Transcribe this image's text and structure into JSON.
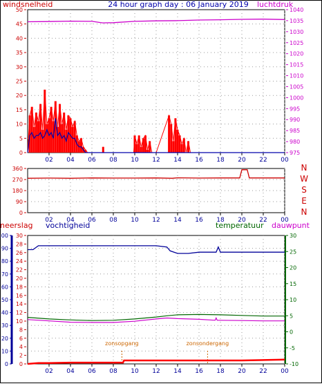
{
  "title": "24 hour graph day : 06 January 2019",
  "colors": {
    "wind": "#ff0000",
    "gust": "#0000aa",
    "pressure": "#cc00cc",
    "direction": "#cc0000",
    "humidity": "#000099",
    "temperature": "#006600",
    "dewpoint": "#cc00cc",
    "rain": "#ff0000",
    "sun_marker": "#cc6600",
    "axis": "#000000",
    "grid": "#999999"
  },
  "x_ticks": [
    "02",
    "04",
    "06",
    "08",
    "10",
    "12",
    "14",
    "16",
    "18",
    "20",
    "22",
    "00"
  ],
  "chart_data": [
    {
      "type": "line",
      "name": "wind-pressure",
      "labels": {
        "left": "windsnelheid",
        "right": "luchtdruk"
      },
      "x_range": [
        0,
        24
      ],
      "left_axis": {
        "ticks": [
          0,
          5,
          10,
          15,
          20,
          25,
          30,
          35,
          40,
          45,
          50
        ],
        "range": [
          0,
          50
        ]
      },
      "right_axis": {
        "ticks": [
          975,
          980,
          985,
          990,
          995,
          1000,
          1005,
          1010,
          1015,
          1020,
          1025,
          1030,
          1035,
          1040
        ],
        "range": [
          975,
          1040
        ]
      },
      "series": [
        {
          "role": "wind_gust",
          "x": [
            0,
            0.2,
            0.4,
            0.6,
            0.8,
            1.0,
            1.2,
            1.4,
            1.6,
            1.8,
            2.0,
            2.2,
            2.4,
            2.6,
            2.8,
            3.0,
            3.2,
            3.4,
            3.6,
            3.8,
            4.0,
            4.2,
            4.4,
            4.6,
            4.8,
            5.0,
            5.2,
            5.4,
            5.6,
            7.0,
            7.05,
            7.1,
            9.9,
            10.0,
            10.2,
            10.4,
            10.6,
            10.8,
            11.0,
            11.2,
            11.4,
            11.6,
            12.0,
            13.2,
            13.4,
            13.6,
            13.8,
            14.0,
            14.2,
            14.4,
            14.6,
            14.8,
            15.0,
            15.2,
            24
          ],
          "y": [
            0,
            13,
            16,
            9,
            14,
            11,
            17,
            8,
            22,
            10,
            12,
            16,
            11,
            18,
            9,
            17,
            10,
            14,
            8,
            13,
            12,
            9,
            11,
            6,
            4,
            5,
            2,
            1,
            0,
            0,
            2,
            0,
            0,
            6,
            3,
            6,
            2,
            5,
            6,
            1,
            4,
            0,
            0,
            13,
            10,
            4,
            12,
            8,
            6,
            3,
            5,
            0,
            4,
            0,
            0
          ]
        },
        {
          "role": "wind_speed",
          "x": [
            0,
            0.2,
            0.4,
            0.6,
            0.8,
            1.0,
            1.2,
            1.4,
            1.6,
            1.8,
            2.0,
            2.2,
            2.4,
            2.6,
            2.8,
            3.0,
            3.2,
            3.4,
            3.6,
            3.8,
            4.0,
            4.2,
            4.4,
            4.6,
            4.8,
            5.0,
            5.2,
            5.4,
            24
          ],
          "y": [
            0,
            6,
            7,
            5,
            6,
            6,
            7,
            5,
            6,
            8,
            6,
            7,
            5,
            12,
            6,
            7,
            5,
            6,
            4,
            7,
            6,
            5,
            5,
            3,
            2,
            2,
            1,
            0,
            0
          ]
        },
        {
          "role": "pressure",
          "x": [
            0,
            2,
            4,
            6,
            7,
            8,
            10,
            12,
            14,
            16,
            18,
            20,
            22,
            24
          ],
          "y": [
            1034.5,
            1034.6,
            1034.8,
            1034.7,
            1034.0,
            1034.1,
            1034.7,
            1034.9,
            1035.0,
            1035.3,
            1035.4,
            1035.6,
            1035.7,
            1035.5
          ]
        }
      ]
    },
    {
      "type": "line",
      "name": "wind-direction",
      "x_range": [
        0,
        24
      ],
      "left_axis": {
        "ticks": [
          0,
          90,
          180,
          270,
          360
        ],
        "range": [
          0,
          360
        ]
      },
      "right_labels": [
        "N",
        "W",
        "S",
        "E",
        "N"
      ],
      "series": [
        {
          "role": "direction",
          "x": [
            0,
            2,
            4,
            6,
            8,
            10,
            12,
            13.5,
            14,
            16,
            18,
            19.8,
            20.0,
            20.5,
            20.7,
            24
          ],
          "y": [
            280,
            282,
            280,
            283,
            282,
            282,
            283,
            280,
            284,
            282,
            283,
            283,
            350,
            350,
            283,
            283
          ]
        }
      ]
    },
    {
      "type": "line",
      "name": "rain-humidity-temperature",
      "labels": {
        "rain": "neerslag",
        "humidity": "vochtigheid",
        "temperature": "temperatuur",
        "dewpoint": "dauwpunt"
      },
      "x_range": [
        0,
        24
      ],
      "left_axis": {
        "ticks": [
          0,
          10,
          20,
          30,
          40,
          50,
          60,
          70,
          80,
          90,
          100
        ],
        "range": [
          0,
          100
        ]
      },
      "left_axis_2": {
        "ticks": [
          0,
          2,
          4,
          6,
          8,
          10,
          12,
          14,
          16,
          18,
          20,
          22,
          24,
          26,
          28,
          30
        ],
        "range": [
          0,
          30
        ]
      },
      "right_axis": {
        "ticks": [
          -10,
          -5,
          0,
          5,
          10,
          15,
          20,
          25,
          30
        ],
        "range": [
          -10,
          30
        ]
      },
      "annotations": [
        {
          "label": "zonsopgang",
          "x": 8.8
        },
        {
          "label": "zonsondergang",
          "x": 16.8
        }
      ],
      "series": [
        {
          "role": "humidity",
          "x": [
            0,
            0.5,
            1,
            6,
            12,
            13,
            13.3,
            14,
            15,
            16,
            17.6,
            17.8,
            18,
            24
          ],
          "y": [
            89,
            89,
            92,
            92,
            92,
            91,
            88,
            86,
            86,
            87,
            87,
            91,
            87,
            87
          ]
        },
        {
          "role": "temperature",
          "x": [
            0,
            2,
            4,
            6,
            8,
            10,
            12,
            13,
            14,
            16,
            18,
            20,
            22,
            24
          ],
          "y": [
            4.5,
            4.0,
            3.7,
            3.5,
            3.6,
            4.0,
            4.6,
            5.0,
            5.3,
            5.4,
            5.3,
            5.1,
            4.9,
            4.9
          ]
        },
        {
          "role": "dewpoint",
          "x": [
            0,
            2,
            4,
            6,
            8,
            10,
            12,
            13,
            14,
            16,
            17.5,
            17.6,
            17.7,
            18,
            20,
            22,
            24
          ],
          "y": [
            3.8,
            3.4,
            3.0,
            2.9,
            2.9,
            3.3,
            4.0,
            4.3,
            4.1,
            3.9,
            3.6,
            4.3,
            3.6,
            3.6,
            3.5,
            3.4,
            3.4
          ]
        },
        {
          "role": "rain",
          "x": [
            0,
            1,
            2,
            4,
            6,
            8,
            8.9,
            9,
            12,
            16,
            20,
            24
          ],
          "y": [
            0,
            0.2,
            0.2,
            0.3,
            0.3,
            0.3,
            0.3,
            0.8,
            0.8,
            0.8,
            0.8,
            1.0
          ]
        }
      ]
    }
  ]
}
